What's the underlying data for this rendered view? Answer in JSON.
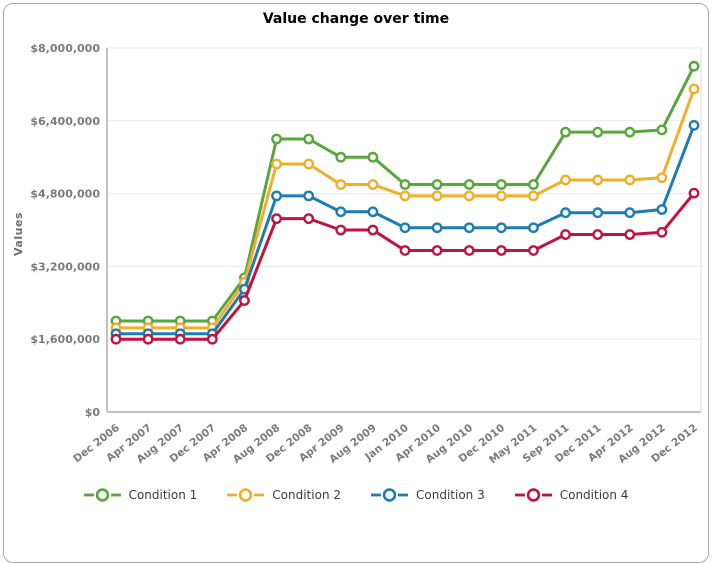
{
  "title": "Value change over time",
  "y_axis_title": "Values",
  "chart_data": {
    "type": "line",
    "title": "Value change over time",
    "xlabel": "",
    "ylabel": "Values",
    "ylim": [
      0,
      8000000
    ],
    "grid": "horizontal-only",
    "legend_position": "bottom",
    "marker_style": "open-circle-white-fill",
    "categories": [
      "Dec 2006",
      "Apr 2007",
      "Aug 2007",
      "Dec 2007",
      "Apr 2008",
      "Aug 2008",
      "Dec 2008",
      "Apr 2009",
      "Aug 2009",
      "Jan 2010",
      "Apr 2010",
      "Aug 2010",
      "Dec 2010",
      "May 2011",
      "Sep 2011",
      "Dec 2011",
      "Apr 2012",
      "Aug 2012",
      "Dec 2012"
    ],
    "y_ticks": [
      {
        "value": 0,
        "label": "$0"
      },
      {
        "value": 1600000,
        "label": "$1,600,000"
      },
      {
        "value": 3200000,
        "label": "$3,200,000"
      },
      {
        "value": 4800000,
        "label": "$4,800,000"
      },
      {
        "value": 6400000,
        "label": "$6,400,000"
      },
      {
        "value": 8000000,
        "label": "$8,000,000"
      }
    ],
    "series": [
      {
        "name": "Condition 1",
        "color": "#58A63C",
        "values": [
          2000000,
          2000000,
          2000000,
          2000000,
          2950000,
          6000000,
          6000000,
          5600000,
          5600000,
          5000000,
          5000000,
          5000000,
          5000000,
          5000000,
          6150000,
          6150000,
          6150000,
          6200000,
          7600000
        ]
      },
      {
        "name": "Condition 2",
        "color": "#F2AE2B",
        "values": [
          1850000,
          1850000,
          1850000,
          1850000,
          2850000,
          5450000,
          5450000,
          5000000,
          5000000,
          4750000,
          4750000,
          4750000,
          4750000,
          4750000,
          5100000,
          5100000,
          5100000,
          5150000,
          7100000
        ]
      },
      {
        "name": "Condition 3",
        "color": "#1D7CB4",
        "values": [
          1720000,
          1720000,
          1720000,
          1720000,
          2700000,
          4750000,
          4750000,
          4400000,
          4400000,
          4050000,
          4050000,
          4050000,
          4050000,
          4050000,
          4380000,
          4380000,
          4380000,
          4450000,
          6300000
        ]
      },
      {
        "name": "Condition 4",
        "color": "#C2123F",
        "values": [
          1600000,
          1600000,
          1600000,
          1600000,
          2450000,
          4250000,
          4250000,
          4000000,
          4000000,
          3550000,
          3550000,
          3550000,
          3550000,
          3550000,
          3900000,
          3900000,
          3900000,
          3950000,
          4810000
        ]
      }
    ],
    "colors": {
      "axis_line": "#c0c0c0",
      "frame_line": "#dcdcdc",
      "gridline": "#eaeaea",
      "tick_label": "#7b7b7b",
      "title_text": "#000000",
      "legend_text": "#3c3c3c",
      "marker_fill": "#ffffff"
    }
  }
}
